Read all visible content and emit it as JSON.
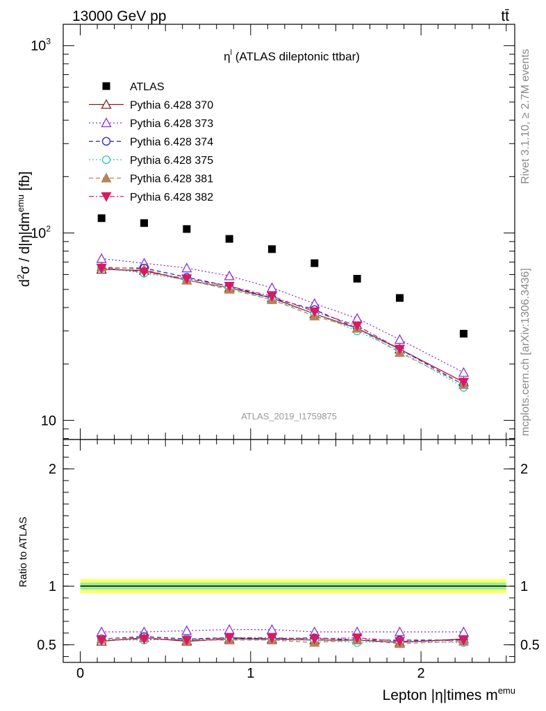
{
  "header": {
    "energy_label": "13000 GeV pp",
    "process_label": "tt̄"
  },
  "side_labels": {
    "rivet": "Rivet 3.1.10, ≥ 2.7M events",
    "mcplots": "mcplots.cern.ch [arXiv:1306.3436]"
  },
  "analysis_id": "ATLAS_2019_I1759875",
  "chart_data": [
    {
      "type": "scatter",
      "panel": "main",
      "title": "η^l (ATLAS dileptonic ttbar)",
      "title_main": "η",
      "title_sup": "l",
      "title_rest": " (ATLAS dileptonic ttbar)",
      "ylabel": "d²σ / d|η|dm^emu [fb]",
      "y_scale": "log",
      "ylim": [
        7.9,
        1300
      ],
      "xlim": [
        -0.1,
        2.55
      ],
      "y_ticks": [
        10,
        100,
        1000
      ],
      "y_tick_labels": [
        "10",
        "10²",
        "10³"
      ],
      "legend_position": "top-left",
      "x": [
        0.125,
        0.375,
        0.625,
        0.875,
        1.125,
        1.375,
        1.625,
        1.875,
        2.25
      ],
      "series": [
        {
          "name": "ATLAS",
          "color": "#000000",
          "marker": "square-filled",
          "line": "none",
          "values": [
            120,
            113,
            105,
            93,
            82,
            69,
            57,
            45,
            29
          ]
        },
        {
          "name": "Pythia 6.428 370",
          "color": "#8b1a1a",
          "marker": "triangle-open",
          "line": "solid",
          "values": [
            64,
            63,
            56,
            51,
            45,
            37,
            31,
            24,
            16
          ]
        },
        {
          "name": "Pythia 6.428 373",
          "color": "#8a2be2",
          "marker": "triangle-open",
          "line": "dotted",
          "values": [
            73,
            69,
            65,
            59,
            51,
            42,
            35,
            27,
            18
          ]
        },
        {
          "name": "Pythia 6.428 374",
          "color": "#1e1ed2",
          "marker": "circle-open",
          "line": "dashed",
          "values": [
            65,
            65,
            58,
            52,
            45,
            39,
            31,
            24,
            15.5
          ]
        },
        {
          "name": "Pythia 6.428 375",
          "color": "#20c8c8",
          "marker": "circle-open",
          "line": "dotted",
          "values": [
            65,
            61,
            56,
            51,
            44,
            37,
            30,
            23.5,
            15
          ]
        },
        {
          "name": "Pythia 6.428 381",
          "color": "#b5835a",
          "marker": "triangle-filled",
          "line": "dashed",
          "values": [
            66,
            64,
            56,
            50,
            44,
            36,
            31,
            23,
            15.5
          ]
        },
        {
          "name": "Pythia 6.428 382",
          "color": "#d81b60",
          "marker": "triangle-down-filled",
          "line": "dashdot",
          "values": [
            65,
            62,
            57,
            52,
            46,
            38,
            32,
            24,
            16
          ]
        }
      ]
    },
    {
      "type": "scatter",
      "panel": "ratio",
      "ylabel": "Ratio to ATLAS",
      "xlabel": "Lepton |η|times m^emu",
      "xlabel_main": "Lepton |η|times m",
      "xlabel_sup": "emu",
      "ylim": [
        0.35,
        2.25
      ],
      "xlim": [
        -0.1,
        2.55
      ],
      "y_ticks": [
        0.5,
        1,
        2
      ],
      "y_tick_labels": [
        "0.5",
        "1",
        "2"
      ],
      "x_ticks": [
        0,
        1,
        2
      ],
      "x_tick_labels": [
        "0",
        "1",
        "2"
      ],
      "reference_band": {
        "inner": [
          0.97,
          1.03
        ],
        "outer": [
          0.94,
          1.06
        ]
      },
      "x": [
        0.125,
        0.375,
        0.625,
        0.875,
        1.125,
        1.375,
        1.625,
        1.875,
        2.25
      ],
      "series": [
        {
          "name": "Pythia 6.428 370",
          "values": [
            0.53,
            0.56,
            0.53,
            0.55,
            0.55,
            0.54,
            0.54,
            0.52,
            0.55
          ]
        },
        {
          "name": "Pythia 6.428 373",
          "values": [
            0.61,
            0.61,
            0.62,
            0.63,
            0.63,
            0.61,
            0.61,
            0.61,
            0.61
          ]
        },
        {
          "name": "Pythia 6.428 374",
          "values": [
            0.55,
            0.57,
            0.55,
            0.56,
            0.55,
            0.56,
            0.54,
            0.54,
            0.54
          ]
        },
        {
          "name": "Pythia 6.428 375",
          "values": [
            0.54,
            0.54,
            0.55,
            0.55,
            0.54,
            0.54,
            0.52,
            0.53,
            0.52
          ]
        },
        {
          "name": "Pythia 6.428 381",
          "values": [
            0.55,
            0.56,
            0.54,
            0.54,
            0.54,
            0.52,
            0.54,
            0.51,
            0.53
          ]
        },
        {
          "name": "Pythia 6.428 382",
          "values": [
            0.54,
            0.55,
            0.54,
            0.56,
            0.56,
            0.55,
            0.56,
            0.53,
            0.54
          ]
        }
      ]
    }
  ]
}
